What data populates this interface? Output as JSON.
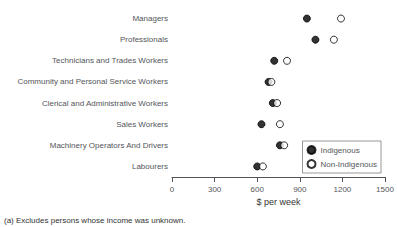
{
  "chart_data": {
    "type": "scatter",
    "orientation": "horizontal",
    "categories": [
      "Labourers",
      "Machinery Operators And Drivers",
      "Sales Workers",
      "Clerical and Administrative Workers",
      "Community and Personal Service Workers",
      "Technicians and Trades Workers",
      "Professionals",
      "Managers"
    ],
    "series": [
      {
        "name": "Indigenous",
        "color": "#000000",
        "marker": "circle",
        "values": [
          600,
          760,
          630,
          710,
          680,
          720,
          1010,
          950
        ]
      },
      {
        "name": "Non-Indigenous",
        "color": "#000000",
        "marker": "open circle",
        "values": [
          640,
          790,
          760,
          740,
          700,
          810,
          1140,
          1190
        ]
      }
    ],
    "xlabel": "$ per week",
    "xlim": [
      0,
      1500
    ],
    "xticks": [
      0,
      300,
      600,
      900,
      1200,
      1500
    ],
    "grid": false,
    "legend": "lower right",
    "footnote": "(a) Excludes persons whose income was unknown."
  }
}
